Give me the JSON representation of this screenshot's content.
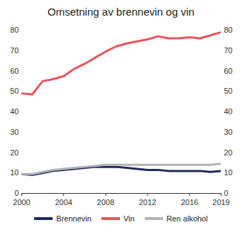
{
  "chart_data": {
    "type": "line",
    "title": "Omsetning av brennevin og vin",
    "x": [
      2000,
      2001,
      2002,
      2003,
      2004,
      2005,
      2006,
      2007,
      2008,
      2009,
      2010,
      2011,
      2012,
      2013,
      2014,
      2015,
      2016,
      2017,
      2018,
      2019
    ],
    "series": [
      {
        "name": "Brennevin",
        "color": "#1f2a5c",
        "values": [
          9.5,
          9,
          10,
          11,
          11.5,
          12,
          12.5,
          13,
          13,
          13,
          12.5,
          12,
          11.5,
          11.5,
          11,
          11,
          11,
          11,
          10.5,
          11
        ]
      },
      {
        "name": "Vin",
        "color": "#e8555a",
        "values": [
          49,
          48.5,
          55,
          56,
          57.5,
          61,
          63.5,
          66.5,
          69.5,
          72,
          73.5,
          74.5,
          75.5,
          77,
          76,
          76,
          76.5,
          76,
          77.5,
          79
        ]
      },
      {
        "name": "Ren alkohol",
        "color": "#b3b3b3",
        "values": [
          9.5,
          9.5,
          10.5,
          11.5,
          12,
          12.5,
          13,
          13.5,
          14,
          14,
          14,
          14,
          14,
          14,
          14,
          14,
          14,
          14,
          14,
          14.5
        ]
      }
    ],
    "xlim": [
      2000,
      2019
    ],
    "xticks": [
      2000,
      2004,
      2008,
      2012,
      2016,
      2019
    ],
    "ylim": [
      0,
      80
    ],
    "yticks": [
      0,
      10,
      20,
      30,
      40,
      50,
      60,
      70,
      80
    ],
    "y2lim": [
      0,
      80
    ],
    "y2ticks": [
      0,
      10,
      20,
      30,
      40,
      50,
      60,
      70,
      80
    ],
    "grid": false,
    "legend": "bottom"
  }
}
